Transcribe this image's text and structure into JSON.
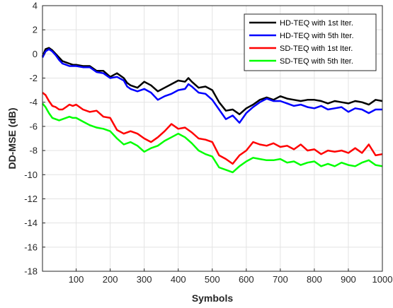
{
  "chart_data": {
    "type": "line",
    "title": "",
    "xlabel": "Symbols",
    "ylabel": "DD-MSE (dB)",
    "xlim": [
      1,
      1000
    ],
    "ylim": [
      -18,
      4
    ],
    "xticks": [
      100,
      200,
      300,
      400,
      500,
      600,
      700,
      800,
      900,
      1000
    ],
    "yticks": [
      -18,
      -16,
      -14,
      -12,
      -10,
      -8,
      -6,
      -4,
      -2,
      0,
      2,
      4
    ],
    "grid": true,
    "legend_position": "top-right",
    "series": [
      {
        "name": "HD-TEQ with 1st Iter.",
        "color": "#000000",
        "x": [
          1,
          10,
          20,
          30,
          40,
          50,
          60,
          70,
          80,
          90,
          100,
          120,
          140,
          160,
          180,
          200,
          220,
          240,
          250,
          260,
          280,
          300,
          320,
          340,
          360,
          380,
          400,
          420,
          430,
          440,
          460,
          480,
          500,
          520,
          540,
          560,
          580,
          600,
          620,
          640,
          660,
          680,
          700,
          720,
          740,
          760,
          780,
          800,
          820,
          840,
          860,
          880,
          900,
          920,
          940,
          960,
          980,
          1000
        ],
        "y": [
          -0.2,
          0.4,
          0.5,
          0.3,
          0.0,
          -0.3,
          -0.6,
          -0.7,
          -0.8,
          -0.9,
          -0.9,
          -1.0,
          -1.0,
          -1.4,
          -1.4,
          -1.9,
          -1.6,
          -2.0,
          -2.4,
          -2.6,
          -2.8,
          -2.3,
          -2.6,
          -3.1,
          -2.8,
          -2.5,
          -2.2,
          -2.3,
          -2.0,
          -2.3,
          -2.8,
          -2.7,
          -3.0,
          -4.0,
          -4.7,
          -4.6,
          -5.0,
          -4.5,
          -4.2,
          -3.8,
          -3.6,
          -3.8,
          -3.5,
          -3.7,
          -3.8,
          -3.9,
          -3.8,
          -3.8,
          -3.9,
          -4.1,
          -3.9,
          -4.0,
          -4.1,
          -3.9,
          -4.0,
          -4.2,
          -3.8,
          -3.9
        ]
      },
      {
        "name": "HD-TEQ with 5th Iter.",
        "color": "#0000ff",
        "x": [
          1,
          10,
          20,
          30,
          40,
          50,
          60,
          70,
          80,
          90,
          100,
          120,
          140,
          160,
          180,
          200,
          220,
          240,
          250,
          260,
          280,
          300,
          320,
          340,
          360,
          380,
          400,
          420,
          430,
          440,
          460,
          480,
          500,
          520,
          540,
          560,
          580,
          600,
          620,
          640,
          660,
          680,
          700,
          720,
          740,
          760,
          780,
          800,
          820,
          840,
          860,
          880,
          900,
          920,
          940,
          960,
          980,
          1000
        ],
        "y": [
          -0.3,
          0.2,
          0.4,
          0.2,
          -0.1,
          -0.5,
          -0.8,
          -0.9,
          -1.0,
          -1.0,
          -1.0,
          -1.1,
          -1.1,
          -1.5,
          -1.6,
          -2.0,
          -1.9,
          -2.2,
          -2.7,
          -2.9,
          -3.1,
          -2.9,
          -3.2,
          -3.8,
          -3.5,
          -3.3,
          -3.0,
          -2.9,
          -2.5,
          -2.7,
          -3.2,
          -3.3,
          -3.8,
          -4.6,
          -5.4,
          -5.1,
          -5.7,
          -4.9,
          -4.4,
          -4.0,
          -3.7,
          -3.9,
          -3.9,
          -4.1,
          -4.3,
          -4.2,
          -4.4,
          -4.5,
          -4.3,
          -4.6,
          -4.5,
          -4.4,
          -4.8,
          -4.5,
          -4.6,
          -4.9,
          -4.6,
          -4.6
        ]
      },
      {
        "name": "SD-TEQ with 1st Iter.",
        "color": "#ff0000",
        "x": [
          1,
          10,
          20,
          30,
          40,
          50,
          60,
          70,
          80,
          90,
          100,
          120,
          140,
          160,
          180,
          200,
          220,
          240,
          260,
          280,
          300,
          320,
          340,
          360,
          380,
          400,
          420,
          440,
          460,
          480,
          500,
          520,
          540,
          560,
          580,
          600,
          620,
          640,
          660,
          680,
          700,
          720,
          740,
          760,
          780,
          800,
          820,
          840,
          860,
          880,
          900,
          920,
          940,
          960,
          980,
          1000
        ],
        "y": [
          -3.2,
          -3.4,
          -3.9,
          -4.3,
          -4.4,
          -4.6,
          -4.6,
          -4.4,
          -4.2,
          -4.3,
          -4.2,
          -4.6,
          -4.8,
          -4.7,
          -5.2,
          -5.3,
          -6.3,
          -6.6,
          -6.4,
          -6.6,
          -7.0,
          -7.3,
          -6.9,
          -6.4,
          -5.8,
          -6.2,
          -6.1,
          -6.5,
          -7.0,
          -7.1,
          -7.3,
          -8.4,
          -8.7,
          -9.1,
          -8.4,
          -8.0,
          -7.3,
          -7.5,
          -7.6,
          -7.4,
          -7.7,
          -7.6,
          -7.9,
          -7.5,
          -8.0,
          -7.9,
          -8.3,
          -8.0,
          -8.1,
          -8.0,
          -8.2,
          -7.8,
          -8.2,
          -7.5,
          -8.4,
          -8.3
        ]
      },
      {
        "name": "SD-TEQ with 5th Iter.",
        "color": "#00ff00",
        "x": [
          1,
          10,
          20,
          30,
          40,
          50,
          60,
          70,
          80,
          90,
          100,
          120,
          140,
          160,
          180,
          200,
          220,
          240,
          260,
          280,
          300,
          320,
          340,
          360,
          380,
          400,
          420,
          440,
          460,
          480,
          500,
          520,
          540,
          560,
          580,
          600,
          620,
          640,
          660,
          680,
          700,
          720,
          740,
          760,
          780,
          800,
          820,
          840,
          860,
          880,
          900,
          920,
          940,
          960,
          980,
          1000
        ],
        "y": [
          -4.1,
          -4.4,
          -4.9,
          -5.3,
          -5.4,
          -5.5,
          -5.4,
          -5.3,
          -5.2,
          -5.3,
          -5.3,
          -5.6,
          -5.9,
          -6.1,
          -6.2,
          -6.4,
          -7.0,
          -7.5,
          -7.3,
          -7.6,
          -8.1,
          -7.8,
          -7.6,
          -7.2,
          -6.9,
          -6.6,
          -6.9,
          -7.4,
          -8.0,
          -8.3,
          -8.5,
          -9.4,
          -9.6,
          -9.8,
          -9.3,
          -8.9,
          -8.6,
          -8.7,
          -8.8,
          -8.8,
          -8.7,
          -9.0,
          -8.9,
          -9.2,
          -9.0,
          -8.9,
          -9.3,
          -9.1,
          -9.3,
          -9.0,
          -9.2,
          -9.3,
          -9.0,
          -8.8,
          -9.2,
          -9.3
        ]
      }
    ]
  }
}
